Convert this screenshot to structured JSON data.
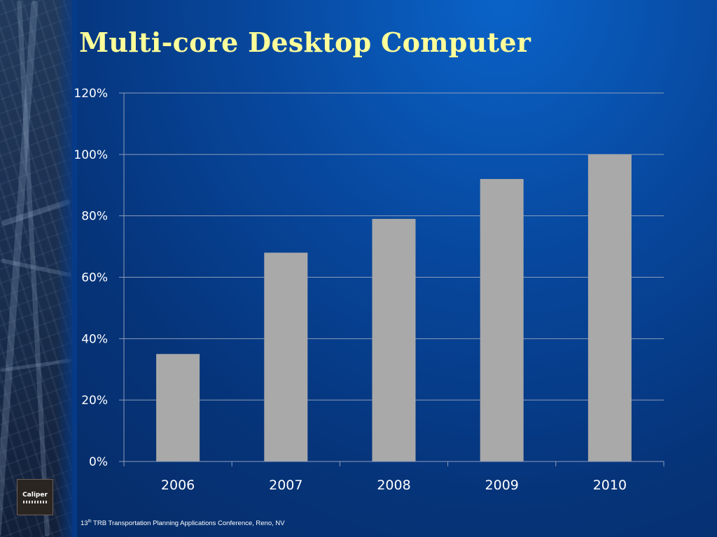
{
  "slide": {
    "title": "Multi-core Desktop Computer",
    "footer_number": "13",
    "footer_sup": "th",
    "footer_text": " TRB Transportation Planning Applications Conference, Reno, NV",
    "logo_text": "Caliper"
  },
  "colors": {
    "title": "#ffff99",
    "bar": "#a9a9a9",
    "gridline": "#8d9cb8",
    "axis_text": "#ffffff"
  },
  "chart_data": {
    "type": "bar",
    "categories": [
      "2006",
      "2007",
      "2008",
      "2009",
      "2010"
    ],
    "values": [
      35,
      68,
      79,
      92,
      100
    ],
    "value_unit": "%",
    "ylim": [
      0,
      120
    ],
    "yticks": [
      0,
      20,
      40,
      60,
      80,
      100,
      120
    ],
    "ytick_labels": [
      "0%",
      "20%",
      "40%",
      "60%",
      "80%",
      "100%",
      "120%"
    ],
    "grid": true,
    "legend": "none"
  }
}
